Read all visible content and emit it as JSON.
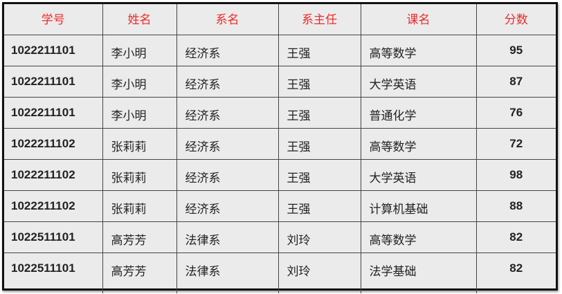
{
  "table": {
    "headers": [
      "学号",
      "姓名",
      "系名",
      "系主任",
      "课名",
      "分数"
    ],
    "rows": [
      [
        "1022211101",
        "李小明",
        "经济系",
        "王强",
        "高等数学",
        "95"
      ],
      [
        "1022211101",
        "李小明",
        "经济系",
        "王强",
        "大学英语",
        "87"
      ],
      [
        "1022211101",
        "李小明",
        "经济系",
        "王强",
        "普通化学",
        "76"
      ],
      [
        "1022211102",
        "张莉莉",
        "经济系",
        "王强",
        "高等数学",
        "72"
      ],
      [
        "1022211102",
        "张莉莉",
        "经济系",
        "王强",
        "大学英语",
        "98"
      ],
      [
        "1022211102",
        "张莉莉",
        "经济系",
        "王强",
        "计算机基础",
        "88"
      ],
      [
        "1022511101",
        "高芳芳",
        "法律系",
        "刘玲",
        "高等数学",
        "82"
      ],
      [
        "1022511101",
        "高芳芳",
        "法律系",
        "刘玲",
        "法学基础",
        "82"
      ]
    ]
  },
  "colors": {
    "header_text": "#ee2a2a",
    "background": "#ebebeb",
    "border": "#111111"
  }
}
